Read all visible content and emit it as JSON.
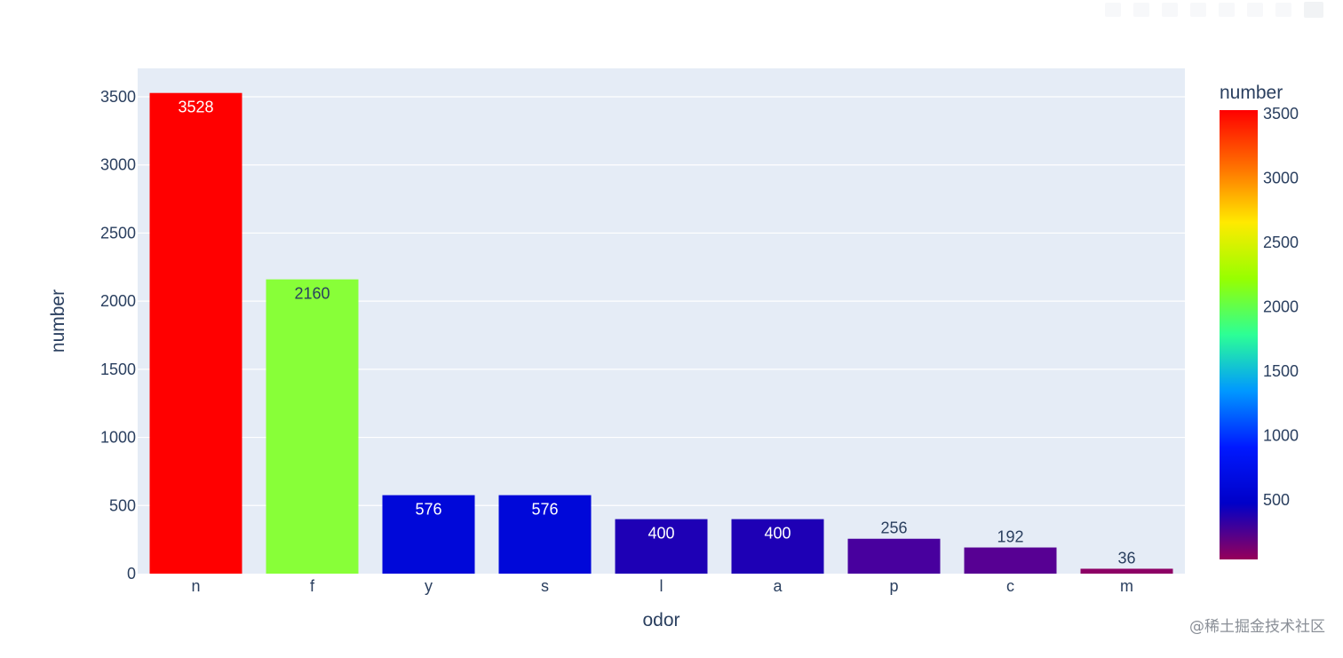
{
  "modebar": {
    "buttons": [
      "camera-icon",
      "zoom-icon",
      "pan-icon",
      "zoom-in-icon",
      "zoom-out-icon",
      "autoscale-icon",
      "reset-icon",
      "plotly-logo-icon"
    ]
  },
  "watermark": "@稀土掘金技术社区",
  "chart_data": {
    "type": "bar",
    "title": "",
    "xlabel": "odor",
    "ylabel": "number",
    "categories": [
      "n",
      "f",
      "y",
      "s",
      "l",
      "a",
      "p",
      "c",
      "m"
    ],
    "values": [
      3528,
      2160,
      576,
      576,
      400,
      400,
      256,
      192,
      36
    ],
    "data_labels": [
      "3528",
      "2160",
      "576",
      "576",
      "400",
      "400",
      "256",
      "192",
      "36"
    ],
    "ylim": [
      0,
      3710
    ],
    "y_ticks": [
      0,
      500,
      1000,
      1500,
      2000,
      2500,
      3000,
      3500
    ],
    "grid": true,
    "plot_background": "#e5ecf6",
    "colorbar": {
      "title": "number",
      "range": [
        36,
        3528
      ],
      "ticks": [
        500,
        1000,
        1500,
        2000,
        2500,
        3000,
        3500
      ],
      "colorscale": "rainbow",
      "colors": [
        "#96005a",
        "#0000c8",
        "#0019ff",
        "#0098ff",
        "#2cff96",
        "#97ff00",
        "#ffea00",
        "#ff6f00",
        "#ff0000"
      ]
    },
    "bar_colors": [
      "#ff0000",
      "#88ff38",
      "#0008d9",
      "#0008d9",
      "#1e00b5",
      "#1e00b5",
      "#48009e",
      "#570093",
      "#8d0065"
    ],
    "label_colors": [
      "#ffffff",
      "#2a3f5f",
      "#ffffff",
      "#ffffff",
      "#ffffff",
      "#ffffff",
      "#ffffff",
      "#2a3f5f",
      "#2a3f5f"
    ],
    "text_color": "#2a3f5f"
  }
}
